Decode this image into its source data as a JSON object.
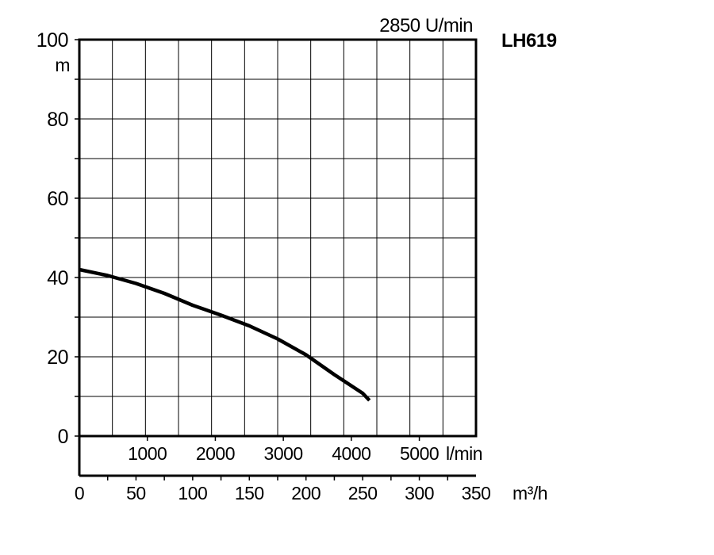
{
  "chart_data": {
    "type": "line",
    "title": "LH619",
    "subtitle": "2850 U/min",
    "ylabel": "m",
    "ylim": [
      0,
      100
    ],
    "y_ticks": [
      "0",
      "20",
      "40",
      "60",
      "80",
      "100"
    ],
    "xlim": [
      0,
      350
    ],
    "x_ticks_m3h": [
      "0",
      "50",
      "100",
      "150",
      "200",
      "250",
      "300",
      "350"
    ],
    "x_unit_m3h": "m³/h",
    "x_ticks_lmin": [
      "1000",
      "2000",
      "3000",
      "4000",
      "5000"
    ],
    "x_lmin_values": [
      1000,
      2000,
      3000,
      4000,
      5000
    ],
    "x_unit_lmin": "l/min",
    "grid": true,
    "series": [
      {
        "x": [
          0,
          25,
          50,
          75,
          100,
          125,
          150,
          175,
          200,
          225,
          250,
          256
        ],
        "y": [
          42,
          40.5,
          38.5,
          36,
          33,
          30.5,
          27.8,
          24.5,
          20.5,
          15.5,
          10.8,
          9
        ]
      }
    ]
  }
}
